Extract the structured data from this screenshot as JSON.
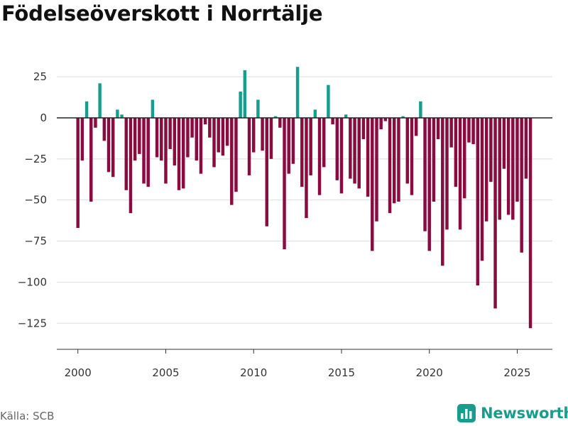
{
  "title": "Födelseöverskott i Norrtälje",
  "source": "Källa: SCB",
  "brand": "Newsworthy",
  "icons": {
    "brand_logo": "newsworthy-bar-chart-icon"
  },
  "colors": {
    "positive": "#1a9c8d",
    "negative": "#8a0b3f",
    "zero_line": "#222222",
    "grid": "#dddddd"
  },
  "chart_data": {
    "type": "bar",
    "title": "Födelseöverskott i Norrtälje",
    "xlabel": "",
    "ylabel": "",
    "ylim": [
      -140,
      38
    ],
    "xlim": [
      1998.8,
      2027.0
    ],
    "grid": true,
    "y_ticks": [
      25,
      0,
      -25,
      -50,
      -75,
      -100,
      -125
    ],
    "y_tick_labels": [
      "25",
      "0",
      "−25",
      "−50",
      "−75",
      "−100",
      "−125"
    ],
    "x_ticks": [
      2000,
      2005,
      2010,
      2015,
      2020,
      2025
    ],
    "x_tick_labels": [
      "2000",
      "2005",
      "2010",
      "2015",
      "2020",
      "2025"
    ],
    "frequency": "quarterly",
    "start_year": 2000,
    "values": [
      -67,
      -26,
      10,
      -51,
      -6,
      21,
      -14,
      -33,
      -36,
      5,
      2,
      -44,
      -58,
      -26,
      -22,
      -40,
      -42,
      11,
      -24,
      -26,
      -40,
      -19,
      -29,
      -44,
      -43,
      -24,
      -12,
      -26,
      -34,
      -4,
      -12,
      -30,
      -21,
      -23,
      -17,
      -53,
      -45,
      16,
      29,
      -35,
      -21,
      11,
      -20,
      -66,
      -25,
      1,
      -6,
      -80,
      -34,
      -28,
      31,
      -42,
      -61,
      -35,
      5,
      -47,
      -30,
      20,
      -4,
      -38,
      -46,
      2,
      -37,
      -40,
      -43,
      -13,
      -48,
      -81,
      -63,
      -7,
      -2,
      -58,
      -52,
      -51,
      1,
      -40,
      -47,
      -11,
      10,
      -69,
      -81,
      -51,
      -13,
      -90,
      -68,
      -18,
      -42,
      -68,
      -49,
      -15,
      -16,
      -102,
      -87,
      -63,
      -39,
      -116,
      -62,
      -31,
      -59,
      -62,
      -51,
      -82,
      -37,
      -128
    ]
  }
}
